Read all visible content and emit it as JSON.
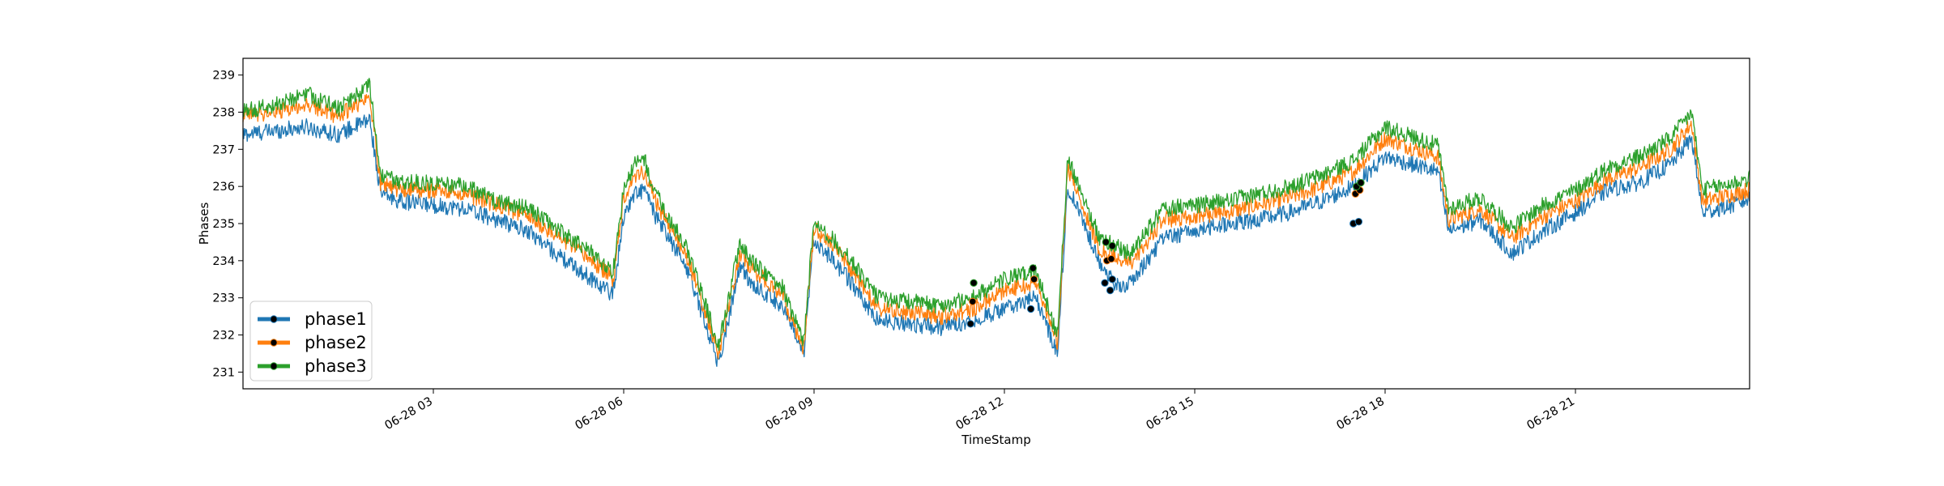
{
  "chart_data": {
    "type": "line",
    "title": "",
    "xlabel": "TimeStamp",
    "ylabel": "Phases",
    "ylim": [
      230.55,
      239.45
    ],
    "xlim": [
      "2022-06-28 00:00",
      "2022-06-28 23:55"
    ],
    "yticks": [
      231,
      232,
      233,
      234,
      235,
      236,
      237,
      238,
      239
    ],
    "xticks": [
      "06-28 03",
      "06-28 06",
      "06-28 09",
      "06-28 12",
      "06-28 15",
      "06-28 18",
      "06-28 21"
    ],
    "grid": false,
    "legend_position": "lower-left",
    "series": [
      {
        "name": "phase1",
        "color": "#1f77b4",
        "x": [
          "00:00",
          "00:30",
          "01:00",
          "01:30",
          "02:00",
          "02:10",
          "02:30",
          "03:00",
          "03:30",
          "04:00",
          "04:30",
          "05:00",
          "05:30",
          "05:50",
          "06:00",
          "06:10",
          "06:20",
          "06:30",
          "07:00",
          "07:30",
          "07:50",
          "08:00",
          "08:30",
          "08:50",
          "09:00",
          "09:30",
          "10:00",
          "10:30",
          "11:00",
          "11:30",
          "12:00",
          "12:30",
          "12:50",
          "13:00",
          "13:30",
          "13:45",
          "14:00",
          "14:30",
          "15:00",
          "15:30",
          "16:00",
          "16:30",
          "17:00",
          "17:30",
          "18:00",
          "18:50",
          "19:00",
          "19:30",
          "20:00",
          "20:30",
          "21:00",
          "21:30",
          "22:00",
          "22:30",
          "22:50",
          "23:00",
          "23:30",
          "23:55"
        ],
        "values": [
          237.4,
          237.5,
          237.6,
          237.4,
          237.8,
          235.8,
          235.6,
          235.5,
          235.4,
          235.1,
          234.8,
          234.1,
          233.5,
          233.1,
          235.2,
          235.8,
          235.9,
          235.2,
          233.8,
          231.2,
          233.9,
          233.4,
          232.8,
          231.4,
          234.6,
          233.6,
          232.4,
          232.3,
          232.2,
          232.4,
          232.7,
          233.0,
          231.5,
          236.0,
          234.0,
          233.3,
          233.4,
          234.6,
          234.8,
          235.0,
          235.1,
          235.3,
          235.6,
          236.0,
          236.8,
          236.4,
          234.8,
          235.1,
          234.2,
          234.8,
          235.3,
          235.9,
          236.1,
          236.6,
          237.3,
          235.3,
          235.5,
          235.8
        ]
      },
      {
        "name": "phase2",
        "color": "#ff7f0e",
        "x": [
          "00:00",
          "00:30",
          "01:00",
          "01:30",
          "02:00",
          "02:10",
          "02:30",
          "03:00",
          "03:30",
          "04:00",
          "04:30",
          "05:00",
          "05:30",
          "05:50",
          "06:00",
          "06:10",
          "06:20",
          "06:30",
          "07:00",
          "07:30",
          "07:50",
          "08:00",
          "08:30",
          "08:50",
          "09:00",
          "09:30",
          "10:00",
          "10:30",
          "11:00",
          "11:30",
          "12:00",
          "12:30",
          "12:50",
          "13:00",
          "13:30",
          "13:45",
          "14:00",
          "14:30",
          "15:00",
          "15:30",
          "16:00",
          "16:30",
          "17:00",
          "17:30",
          "18:00",
          "18:50",
          "19:00",
          "19:30",
          "20:00",
          "20:30",
          "21:00",
          "21:30",
          "22:00",
          "22:30",
          "22:50",
          "23:00",
          "23:30",
          "23:55"
        ],
        "values": [
          237.9,
          238.0,
          238.2,
          237.9,
          238.4,
          236.1,
          235.9,
          235.9,
          235.8,
          235.5,
          235.2,
          234.6,
          234.0,
          233.5,
          235.7,
          236.3,
          236.4,
          235.6,
          234.1,
          231.5,
          234.2,
          233.8,
          233.1,
          231.6,
          234.9,
          234.0,
          232.7,
          232.6,
          232.5,
          232.7,
          233.2,
          233.4,
          231.8,
          236.5,
          234.3,
          234.1,
          233.9,
          235.1,
          235.2,
          235.3,
          235.5,
          235.7,
          236.0,
          236.4,
          237.3,
          236.8,
          235.1,
          235.4,
          234.6,
          235.2,
          235.6,
          236.2,
          236.5,
          237.0,
          237.7,
          235.6,
          235.8,
          236.0
        ]
      },
      {
        "name": "phase3",
        "color": "#2ca02c",
        "x": [
          "00:00",
          "00:30",
          "01:00",
          "01:30",
          "02:00",
          "02:10",
          "02:30",
          "03:00",
          "03:30",
          "04:00",
          "04:30",
          "05:00",
          "05:30",
          "05:50",
          "06:00",
          "06:10",
          "06:20",
          "06:30",
          "07:00",
          "07:30",
          "07:50",
          "08:00",
          "08:30",
          "08:50",
          "09:00",
          "09:30",
          "10:00",
          "10:30",
          "11:00",
          "11:30",
          "12:00",
          "12:30",
          "12:50",
          "13:00",
          "13:30",
          "13:45",
          "14:00",
          "14:30",
          "15:00",
          "15:30",
          "16:00",
          "16:30",
          "17:00",
          "17:30",
          "18:00",
          "18:50",
          "19:00",
          "19:30",
          "20:00",
          "20:30",
          "21:00",
          "21:30",
          "22:00",
          "22:30",
          "22:50",
          "23:00",
          "23:30",
          "23:55"
        ],
        "values": [
          238.0,
          238.2,
          238.5,
          238.1,
          238.7,
          236.3,
          236.1,
          236.1,
          236.0,
          235.6,
          235.4,
          234.8,
          234.2,
          233.7,
          235.9,
          236.6,
          236.7,
          235.8,
          234.3,
          231.7,
          234.5,
          234.0,
          233.3,
          231.8,
          235.1,
          234.2,
          233.0,
          232.9,
          232.8,
          233.0,
          233.5,
          233.7,
          232.0,
          236.8,
          234.6,
          234.4,
          234.2,
          235.4,
          235.5,
          235.6,
          235.8,
          236.0,
          236.3,
          236.7,
          237.6,
          237.1,
          235.4,
          235.7,
          234.9,
          235.5,
          235.9,
          236.5,
          236.8,
          237.3,
          238.0,
          235.9,
          236.1,
          236.3
        ]
      }
    ],
    "markers": [
      {
        "series": "phase1",
        "x": "11:28",
        "y": 232.3
      },
      {
        "series": "phase1",
        "x": "12:25",
        "y": 232.7
      },
      {
        "series": "phase1",
        "x": "13:35",
        "y": 233.4
      },
      {
        "series": "phase1",
        "x": "13:40",
        "y": 233.2
      },
      {
        "series": "phase1",
        "x": "13:42",
        "y": 233.5
      },
      {
        "series": "phase1",
        "x": "17:30",
        "y": 235.0
      },
      {
        "series": "phase1",
        "x": "17:35",
        "y": 235.05
      },
      {
        "series": "phase2",
        "x": "11:30",
        "y": 232.9
      },
      {
        "series": "phase2",
        "x": "12:28",
        "y": 233.5
      },
      {
        "series": "phase2",
        "x": "13:37",
        "y": 234.0
      },
      {
        "series": "phase2",
        "x": "13:41",
        "y": 234.05
      },
      {
        "series": "phase2",
        "x": "17:32",
        "y": 235.8
      },
      {
        "series": "phase2",
        "x": "17:36",
        "y": 235.9
      },
      {
        "series": "phase3",
        "x": "11:31",
        "y": 233.4
      },
      {
        "series": "phase3",
        "x": "12:27",
        "y": 233.8
      },
      {
        "series": "phase3",
        "x": "13:36",
        "y": 234.5
      },
      {
        "series": "phase3",
        "x": "13:42",
        "y": 234.4
      },
      {
        "series": "phase3",
        "x": "17:33",
        "y": 236.0
      },
      {
        "series": "phase3",
        "x": "17:37",
        "y": 236.1
      }
    ]
  }
}
